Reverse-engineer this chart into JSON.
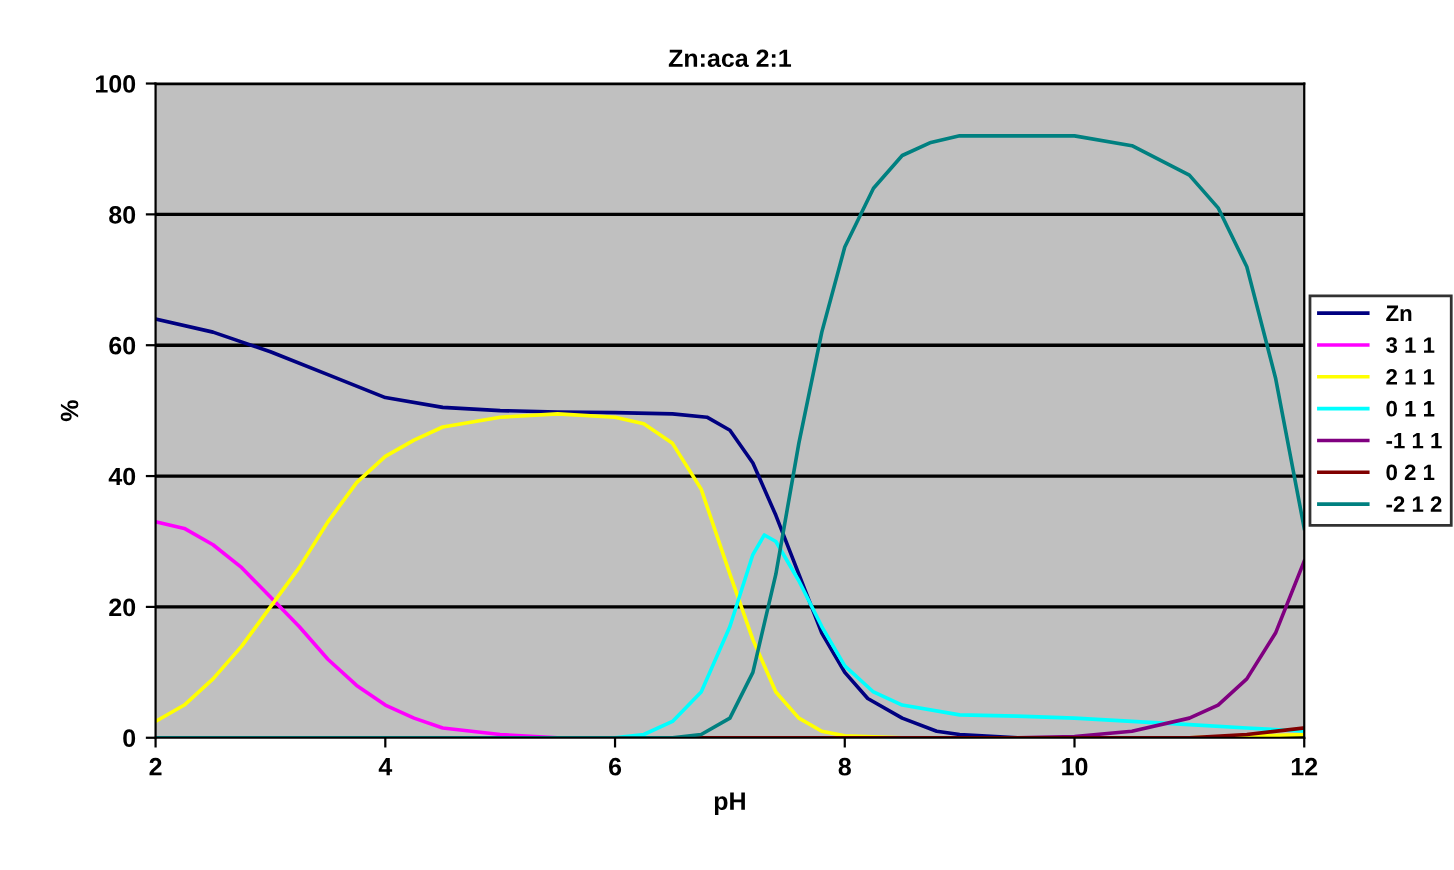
{
  "chart_data": {
    "type": "line",
    "title": "Zn:aca 2:1",
    "xlabel": "pH",
    "ylabel": "%",
    "xlim": [
      2,
      12
    ],
    "xticks": [
      2,
      4,
      6,
      8,
      10,
      12
    ],
    "ylim": [
      0,
      100
    ],
    "yticks": [
      0,
      20,
      40,
      60,
      80,
      100
    ],
    "grid": "y",
    "legend": "right",
    "marker": "none",
    "line_style": "solid",
    "series": [
      {
        "name": "Zn",
        "color": "#000080",
        "x": [
          2,
          2.5,
          3,
          3.5,
          4,
          4.5,
          5,
          5.5,
          6,
          6.5,
          6.8,
          7,
          7.2,
          7.4,
          7.6,
          7.8,
          8,
          8.2,
          8.5,
          8.8,
          9,
          9.5
        ],
        "values": [
          64,
          62,
          59,
          55.5,
          52,
          50.5,
          50,
          49.8,
          49.7,
          49.5,
          49,
          47,
          42,
          34,
          25,
          16,
          10,
          6,
          3,
          1,
          0.5,
          0
        ]
      },
      {
        "name": "3 1 1",
        "color": "#ff00ff",
        "x": [
          2,
          2.25,
          2.5,
          2.75,
          3,
          3.25,
          3.5,
          3.75,
          4,
          4.25,
          4.5,
          5,
          5.5,
          6
        ],
        "values": [
          33,
          32,
          29.5,
          26,
          21.5,
          17,
          12,
          8,
          5,
          3,
          1.5,
          0.5,
          0,
          0
        ]
      },
      {
        "name": "2 1 1",
        "color": "#ffff00",
        "x": [
          2,
          2.25,
          2.5,
          2.75,
          3,
          3.25,
          3.5,
          3.75,
          4,
          4.25,
          4.5,
          5,
          5.5,
          6,
          6.25,
          6.5,
          6.75,
          7,
          7.2,
          7.4,
          7.6,
          7.8,
          8,
          8.5,
          11,
          12
        ],
        "values": [
          2.5,
          5,
          9,
          14,
          20,
          26,
          33,
          39,
          43,
          45.5,
          47.5,
          49,
          49.5,
          49,
          48,
          45,
          38,
          25,
          15,
          7,
          3,
          1,
          0.3,
          0,
          0,
          0.5
        ]
      },
      {
        "name": "0 1 1",
        "color": "#00ffff",
        "x": [
          2,
          6,
          6.25,
          6.5,
          6.75,
          7,
          7.2,
          7.3,
          7.4,
          7.6,
          7.8,
          8,
          8.25,
          8.5,
          9,
          9.5,
          10,
          10.5,
          11,
          11.5,
          12
        ],
        "values": [
          0,
          0,
          0.5,
          2.5,
          7,
          17,
          28,
          31,
          30,
          24,
          17,
          11,
          7,
          5,
          3.5,
          3.3,
          3,
          2.5,
          2,
          1.5,
          1
        ]
      },
      {
        "name": "-1 1 1",
        "color": "#800080",
        "x": [
          9.5,
          10,
          10.5,
          11,
          11.25,
          11.5,
          11.75,
          12
        ],
        "values": [
          0,
          0.2,
          1,
          3,
          5,
          9,
          16,
          27
        ]
      },
      {
        "name": "0 2 1",
        "color": "#800000",
        "x": [
          2,
          11,
          11.5,
          12
        ],
        "values": [
          0,
          0,
          0.5,
          1.5
        ]
      },
      {
        "name": "-2 1 2",
        "color": "#008080",
        "x": [
          2,
          6.5,
          6.75,
          7,
          7.2,
          7.4,
          7.6,
          7.8,
          8,
          8.25,
          8.5,
          8.75,
          9,
          10,
          10.5,
          11,
          11.25,
          11.5,
          11.75,
          12
        ],
        "values": [
          0,
          0,
          0.5,
          3,
          10,
          25,
          45,
          62,
          75,
          84,
          89,
          91,
          92,
          92,
          90.5,
          86,
          81,
          72,
          55,
          32
        ]
      }
    ]
  }
}
